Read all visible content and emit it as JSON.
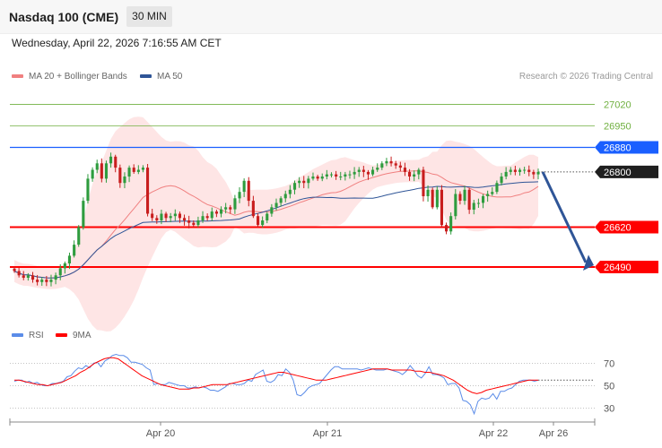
{
  "header": {
    "title": "Nasdaq 100 (CME)",
    "timeframe": "30 MIN",
    "datetime": "Wednesday, April 22, 2026 7:16:55 AM CET"
  },
  "legend": {
    "ma20_bb": "MA 20 + Bollinger Bands",
    "ma50": "MA 50",
    "rsi": "RSI",
    "ma9": "9MA",
    "credit": "Research © 2026 Trading Central"
  },
  "colors": {
    "ma20": "#f08080",
    "ma50": "#2f5597",
    "resistance_green": "#70b040",
    "resistance_blue": "#1a5fff",
    "support_red": "#ff0000",
    "arrow": "#2f5597",
    "rsi": "#5b8ce8",
    "ma9": "#ff0000",
    "up_candle": "#2e9c3e",
    "down_candle": "#c81e1e"
  },
  "chart_data": [
    {
      "type": "candlestick",
      "name": "price",
      "ylim": [
        26350,
        27080
      ],
      "x_labels": [
        "Apr 20",
        "Apr 21",
        "Apr 22",
        "Apr 26"
      ],
      "levels": [
        {
          "label": "27020",
          "value": 27020,
          "style": "green-line"
        },
        {
          "label": "26950",
          "value": 26950,
          "style": "green-line"
        },
        {
          "label": "26880",
          "value": 26880,
          "style": "blue-tag"
        },
        {
          "label": "26800",
          "value": 26800,
          "style": "black-tag"
        },
        {
          "label": "26620",
          "value": 26620,
          "style": "red-tag"
        },
        {
          "label": "26490",
          "value": 26490,
          "style": "red-tag"
        }
      ],
      "closes": [
        26477,
        26463,
        26455,
        26463,
        26449,
        26441,
        26449,
        26441,
        26449,
        26463,
        26486,
        26502,
        26527,
        26563,
        26620,
        26706,
        26778,
        26807,
        26828,
        26778,
        26828,
        26850,
        26814,
        26764,
        26785,
        26814,
        26800,
        26807,
        26814,
        26664,
        26650,
        26642,
        26664,
        26650,
        26656,
        26664,
        26650,
        26642,
        26634,
        26627,
        26642,
        26656,
        26650,
        26671,
        26664,
        26678,
        26685,
        26678,
        26714,
        26735,
        26771,
        26706,
        26656,
        26627,
        26642,
        26664,
        26685,
        26699,
        26714,
        26728,
        26742,
        26764,
        26771,
        26764,
        26778,
        26785,
        26778,
        26785,
        26792,
        26792,
        26785,
        26785,
        26792,
        26792,
        26800,
        26807,
        26800,
        26792,
        26807,
        26814,
        26828,
        26835,
        26828,
        26821,
        26814,
        26800,
        26785,
        26792,
        26807,
        26721,
        26742,
        26685,
        26742,
        26627,
        26606,
        26656,
        26728,
        26706,
        26742,
        26677,
        26699,
        26699,
        26721,
        26728,
        26735,
        26764,
        26785,
        26800,
        26807,
        26800,
        26807,
        26807,
        26800,
        26792,
        26800
      ]
    },
    {
      "type": "line",
      "name": "RSI",
      "ylim": [
        20,
        80
      ],
      "yticks": [
        30,
        50,
        70
      ],
      "ticks_label": [
        "30",
        "50",
        "70"
      ],
      "rsi": [
        54,
        55,
        55,
        53,
        54,
        52,
        53,
        51,
        50,
        50,
        52,
        52,
        53,
        54,
        58,
        59,
        63,
        66,
        65,
        68,
        66,
        70,
        71,
        67,
        72,
        74,
        77,
        78,
        77,
        77,
        75,
        71,
        71,
        70,
        69,
        66,
        64,
        51,
        52,
        51,
        51,
        53,
        52,
        51,
        50,
        50,
        48,
        48,
        49,
        48,
        49,
        48,
        46,
        46,
        45,
        47,
        49,
        52,
        52,
        51,
        51,
        52,
        55,
        54,
        60,
        62,
        64,
        54,
        53,
        55,
        60,
        59,
        65,
        62,
        55,
        42,
        41,
        44,
        48,
        50,
        51,
        52,
        56,
        60,
        64,
        67,
        67,
        65,
        65,
        65,
        65,
        65,
        64,
        65,
        66,
        65,
        64,
        64,
        64,
        65,
        64,
        63,
        62,
        60,
        63,
        68,
        64,
        59,
        57,
        61,
        67,
        60,
        60,
        59,
        57,
        51,
        52,
        52,
        48,
        37,
        36,
        33,
        25,
        36,
        39,
        38,
        39,
        43,
        38,
        45,
        45,
        47,
        48,
        51,
        54,
        55,
        55,
        55,
        54,
        55
      ],
      "ma9": [
        55,
        55,
        54,
        53,
        52,
        51,
        51,
        50,
        51,
        52,
        53,
        55,
        57,
        59,
        62,
        64,
        67,
        70,
        72,
        74,
        75,
        75,
        74,
        71,
        68,
        65,
        62,
        59,
        57,
        55,
        53,
        51,
        50,
        49,
        48,
        47,
        47,
        47,
        48,
        48,
        49,
        50,
        51,
        51,
        51,
        51,
        52,
        53,
        54,
        55,
        56,
        57,
        58,
        59,
        60,
        61,
        62,
        62,
        61,
        60,
        59,
        58,
        57,
        56,
        55,
        55,
        55,
        56,
        57,
        58,
        59,
        60,
        61,
        62,
        63,
        64,
        65,
        65,
        65,
        65,
        64,
        64,
        64,
        64,
        64,
        63,
        63,
        62,
        62,
        61,
        60,
        59,
        57,
        55,
        52,
        49,
        46,
        44,
        43,
        44,
        46,
        47,
        48,
        49,
        50,
        51,
        52,
        53,
        54,
        55,
        55,
        55
      ]
    }
  ]
}
